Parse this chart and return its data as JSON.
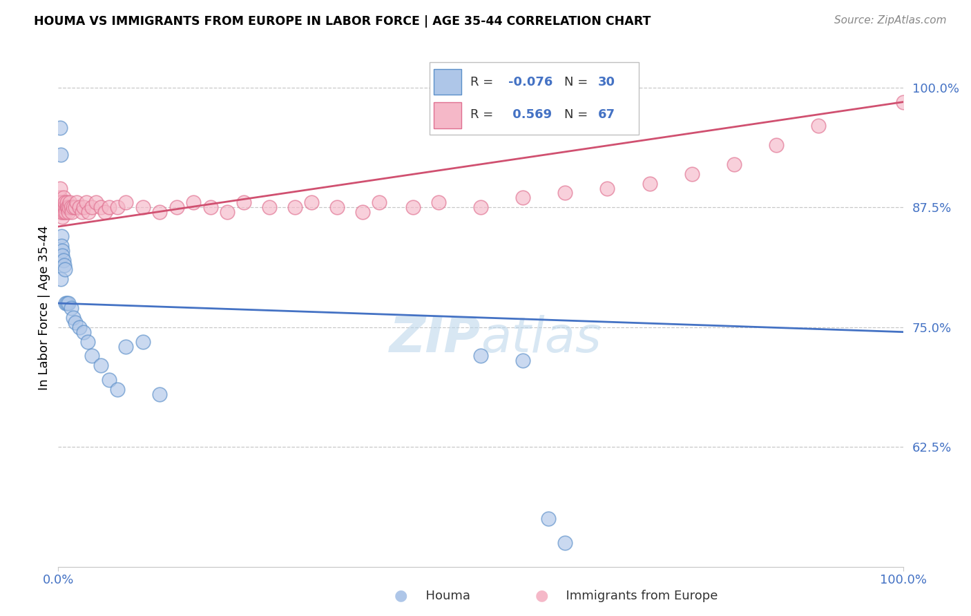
{
  "title": "HOUMA VS IMMIGRANTS FROM EUROPE IN LABOR FORCE | AGE 35-44 CORRELATION CHART",
  "source": "Source: ZipAtlas.com",
  "ylabel": "In Labor Force | Age 35-44",
  "legend_blue_r": "-0.076",
  "legend_blue_n": "30",
  "legend_pink_r": "0.569",
  "legend_pink_n": "67",
  "blue_fill_color": "#aec6e8",
  "blue_edge_color": "#5b8fc9",
  "pink_fill_color": "#f5b8c8",
  "pink_edge_color": "#e07090",
  "blue_line_color": "#4472c4",
  "pink_line_color": "#d05070",
  "watermark_color": "#c8dff0",
  "ytick_color": "#4472c4",
  "xtick_color": "#4472c4",
  "blue_x": [
    0.002,
    0.003,
    0.003,
    0.004,
    0.004,
    0.005,
    0.005,
    0.006,
    0.007,
    0.008,
    0.009,
    0.01,
    0.012,
    0.015,
    0.018,
    0.02,
    0.025,
    0.03,
    0.035,
    0.04,
    0.05,
    0.06,
    0.07,
    0.08,
    0.1,
    0.12,
    0.5,
    0.55,
    0.58,
    0.6
  ],
  "blue_y": [
    0.958,
    0.93,
    0.8,
    0.845,
    0.835,
    0.83,
    0.825,
    0.82,
    0.815,
    0.81,
    0.775,
    0.775,
    0.775,
    0.77,
    0.76,
    0.755,
    0.75,
    0.745,
    0.735,
    0.72,
    0.71,
    0.695,
    0.685,
    0.73,
    0.735,
    0.68,
    0.72,
    0.715,
    0.55,
    0.525
  ],
  "pink_x": [
    0.0,
    0.001,
    0.001,
    0.002,
    0.002,
    0.003,
    0.003,
    0.003,
    0.004,
    0.004,
    0.005,
    0.005,
    0.006,
    0.006,
    0.007,
    0.007,
    0.008,
    0.008,
    0.009,
    0.01,
    0.01,
    0.011,
    0.012,
    0.013,
    0.014,
    0.015,
    0.016,
    0.018,
    0.02,
    0.022,
    0.025,
    0.028,
    0.03,
    0.033,
    0.036,
    0.04,
    0.045,
    0.05,
    0.055,
    0.06,
    0.07,
    0.08,
    0.1,
    0.12,
    0.14,
    0.16,
    0.18,
    0.2,
    0.22,
    0.25,
    0.28,
    0.3,
    0.33,
    0.36,
    0.38,
    0.42,
    0.45,
    0.5,
    0.55,
    0.6,
    0.65,
    0.7,
    0.75,
    0.8,
    0.85,
    0.9,
    1.0
  ],
  "pink_y": [
    0.875,
    0.88,
    0.875,
    0.885,
    0.895,
    0.88,
    0.875,
    0.87,
    0.87,
    0.88,
    0.865,
    0.87,
    0.875,
    0.885,
    0.875,
    0.87,
    0.875,
    0.88,
    0.87,
    0.875,
    0.88,
    0.875,
    0.87,
    0.875,
    0.88,
    0.875,
    0.87,
    0.875,
    0.875,
    0.88,
    0.875,
    0.87,
    0.875,
    0.88,
    0.87,
    0.875,
    0.88,
    0.875,
    0.87,
    0.875,
    0.875,
    0.88,
    0.875,
    0.87,
    0.875,
    0.88,
    0.875,
    0.87,
    0.88,
    0.875,
    0.875,
    0.88,
    0.875,
    0.87,
    0.88,
    0.875,
    0.88,
    0.875,
    0.885,
    0.89,
    0.895,
    0.9,
    0.91,
    0.92,
    0.94,
    0.96,
    0.985
  ],
  "blue_line_x0": 0.0,
  "blue_line_y0": 0.775,
  "blue_line_x1": 1.0,
  "blue_line_y1": 0.745,
  "pink_line_x0": 0.0,
  "pink_line_y0": 0.855,
  "pink_line_x1": 1.0,
  "pink_line_y1": 0.985,
  "xlim": [
    0.0,
    1.0
  ],
  "ylim": [
    0.5,
    1.04
  ],
  "yticks": [
    0.625,
    0.75,
    0.875,
    1.0
  ],
  "ytick_labels": [
    "62.5%",
    "75.0%",
    "87.5%",
    "100.0%"
  ],
  "xtick_labels": [
    "0.0%",
    "100.0%"
  ]
}
